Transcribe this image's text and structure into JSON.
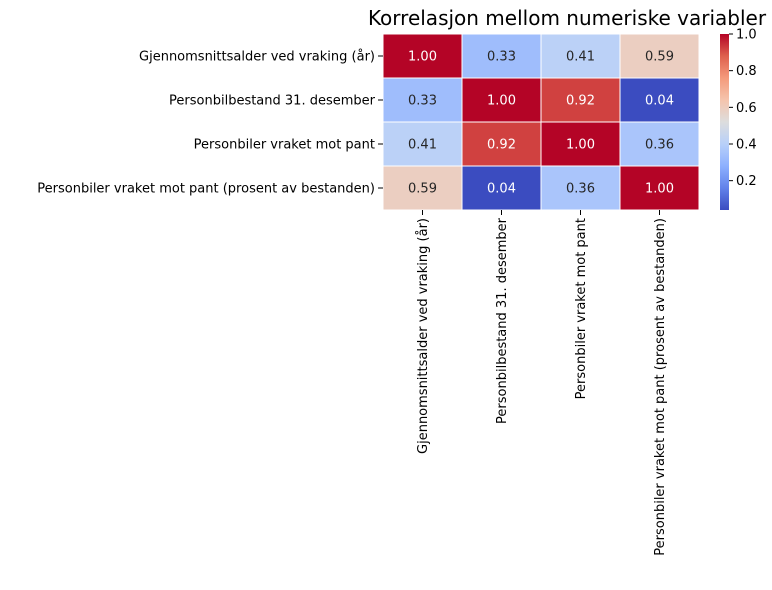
{
  "chart_data": {
    "type": "heatmap",
    "title": "Korrelasjon mellom numeriske variabler",
    "row_labels": [
      "Gjennomsnittsalder ved vraking (år)",
      "Personbilbestand 31. desember",
      "Personbiler vraket mot pant",
      "Personbiler vraket mot pant (prosent av bestanden)"
    ],
    "col_labels": [
      "Gjennomsnittsalder ved vraking (år)",
      "Personbilbestand 31. desember",
      "Personbiler vraket mot pant",
      "Personbiler vraket mot pant (prosent av bestanden)"
    ],
    "values": [
      [
        1.0,
        0.33,
        0.41,
        0.59
      ],
      [
        0.33,
        1.0,
        0.92,
        0.04
      ],
      [
        0.41,
        0.92,
        1.0,
        0.36
      ],
      [
        0.59,
        0.04,
        0.36,
        1.0
      ]
    ],
    "colorbar": {
      "colormap": "coolwarm",
      "range": [
        0.04,
        1.0
      ],
      "ticks": [
        0.2,
        0.4,
        0.6,
        0.8,
        1.0
      ],
      "tick_labels": [
        "0.2",
        "0.4",
        "0.6",
        "0.8",
        "1.0"
      ]
    },
    "annotation_format": "0.00",
    "grid": false
  }
}
